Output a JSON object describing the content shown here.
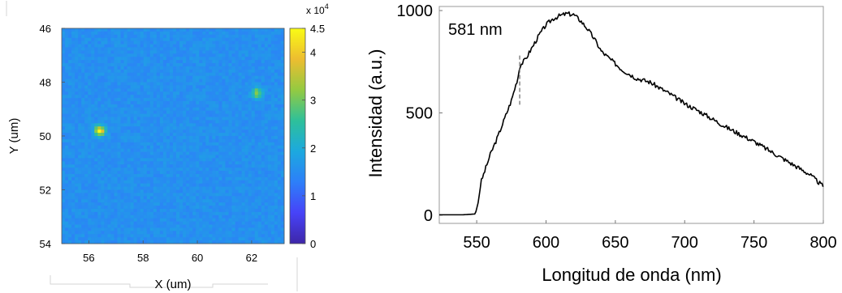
{
  "chart_data": [
    {
      "type": "heatmap",
      "xlabel": "X (um)",
      "ylabel": "Y (um)",
      "xlim": [
        55,
        63.2
      ],
      "ylim": [
        46,
        54
      ],
      "y_reversed": true,
      "xticks": [
        56,
        58,
        60,
        62
      ],
      "yticks": [
        46,
        48,
        50,
        52,
        54
      ],
      "colorbar": {
        "min": 0,
        "max": 4.5,
        "multiplier_label": "x 10",
        "multiplier_exponent": "4",
        "ticks": [
          0,
          1,
          2,
          3,
          4,
          4.5
        ],
        "colormap": [
          "#3e26a8",
          "#4743f8",
          "#2d7ff9",
          "#1ca9df",
          "#2ec09a",
          "#94ca41",
          "#edbd30",
          "#f9fb15"
        ]
      },
      "background_value": 1.55,
      "hotspots": [
        {
          "x": 56.4,
          "y": 49.8,
          "peak": 4.4
        },
        {
          "x": 62.2,
          "y": 48.4,
          "peak": 3.3
        }
      ]
    },
    {
      "type": "line",
      "xlabel": "Longitud de onda (nm)",
      "ylabel": "Intensidad (a.u.)",
      "xlim": [
        523,
        800
      ],
      "ylim": [
        -40,
        1020
      ],
      "xticks": [
        550,
        600,
        650,
        700,
        750,
        800
      ],
      "yticks": [
        0,
        500,
        1000
      ],
      "line_color": "#000000",
      "annotation": {
        "label": "581 nm",
        "x": 581,
        "y_from": 540,
        "y_to": 780
      },
      "series": [
        {
          "x": [
            523,
            540,
            549,
            551,
            553,
            555,
            560,
            565,
            570,
            575,
            580,
            581,
            585,
            590,
            595,
            600,
            605,
            610,
            615,
            620,
            625,
            630,
            635,
            640,
            645,
            650,
            655,
            660,
            665,
            670,
            675,
            680,
            690,
            700,
            710,
            720,
            730,
            740,
            750,
            760,
            770,
            780,
            790,
            800
          ],
          "y": [
            2,
            2,
            6,
            60,
            160,
            200,
            300,
            380,
            470,
            560,
            680,
            730,
            760,
            820,
            880,
            930,
            960,
            975,
            985,
            980,
            950,
            910,
            860,
            800,
            770,
            740,
            710,
            690,
            670,
            660,
            650,
            630,
            590,
            545,
            510,
            470,
            430,
            395,
            360,
            320,
            280,
            240,
            200,
            140
          ]
        }
      ]
    }
  ]
}
